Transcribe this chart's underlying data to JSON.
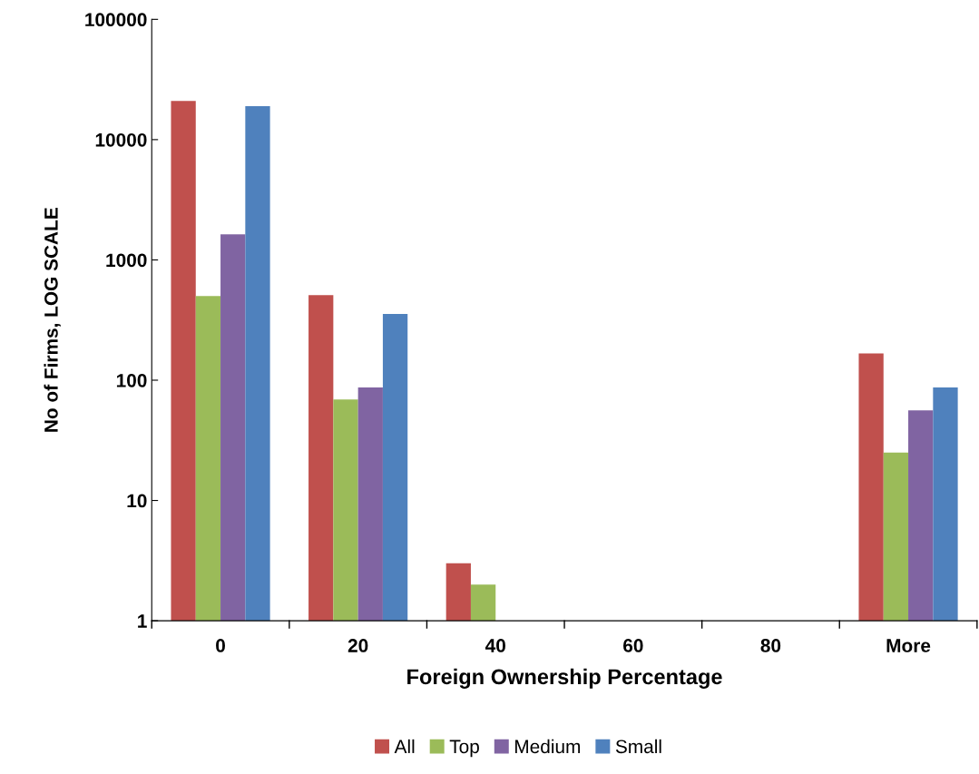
{
  "chart_data": {
    "type": "bar",
    "xlabel": "Foreign Ownership Percentage",
    "ylabel": "No of Firms, LOG SCALE",
    "categories": [
      "0",
      "20",
      "40",
      "60",
      "80",
      "More"
    ],
    "series": [
      {
        "name": "All",
        "color": "#c0504d",
        "values": [
          21000,
          510,
          3,
          null,
          null,
          167
        ]
      },
      {
        "name": "Top",
        "color": "#9bbb59",
        "values": [
          500,
          69,
          2,
          null,
          null,
          25
        ]
      },
      {
        "name": "Medium",
        "color": "#8064a2",
        "values": [
          1630,
          87,
          null,
          null,
          null,
          56
        ]
      },
      {
        "name": "Small",
        "color": "#4f81bd",
        "values": [
          19000,
          355,
          null,
          null,
          null,
          87
        ]
      }
    ],
    "log": true,
    "ylim": [
      1,
      100000
    ],
    "yticks": [
      1,
      10,
      100,
      1000,
      10000,
      100000
    ],
    "grid": false,
    "legend": "bottom"
  }
}
